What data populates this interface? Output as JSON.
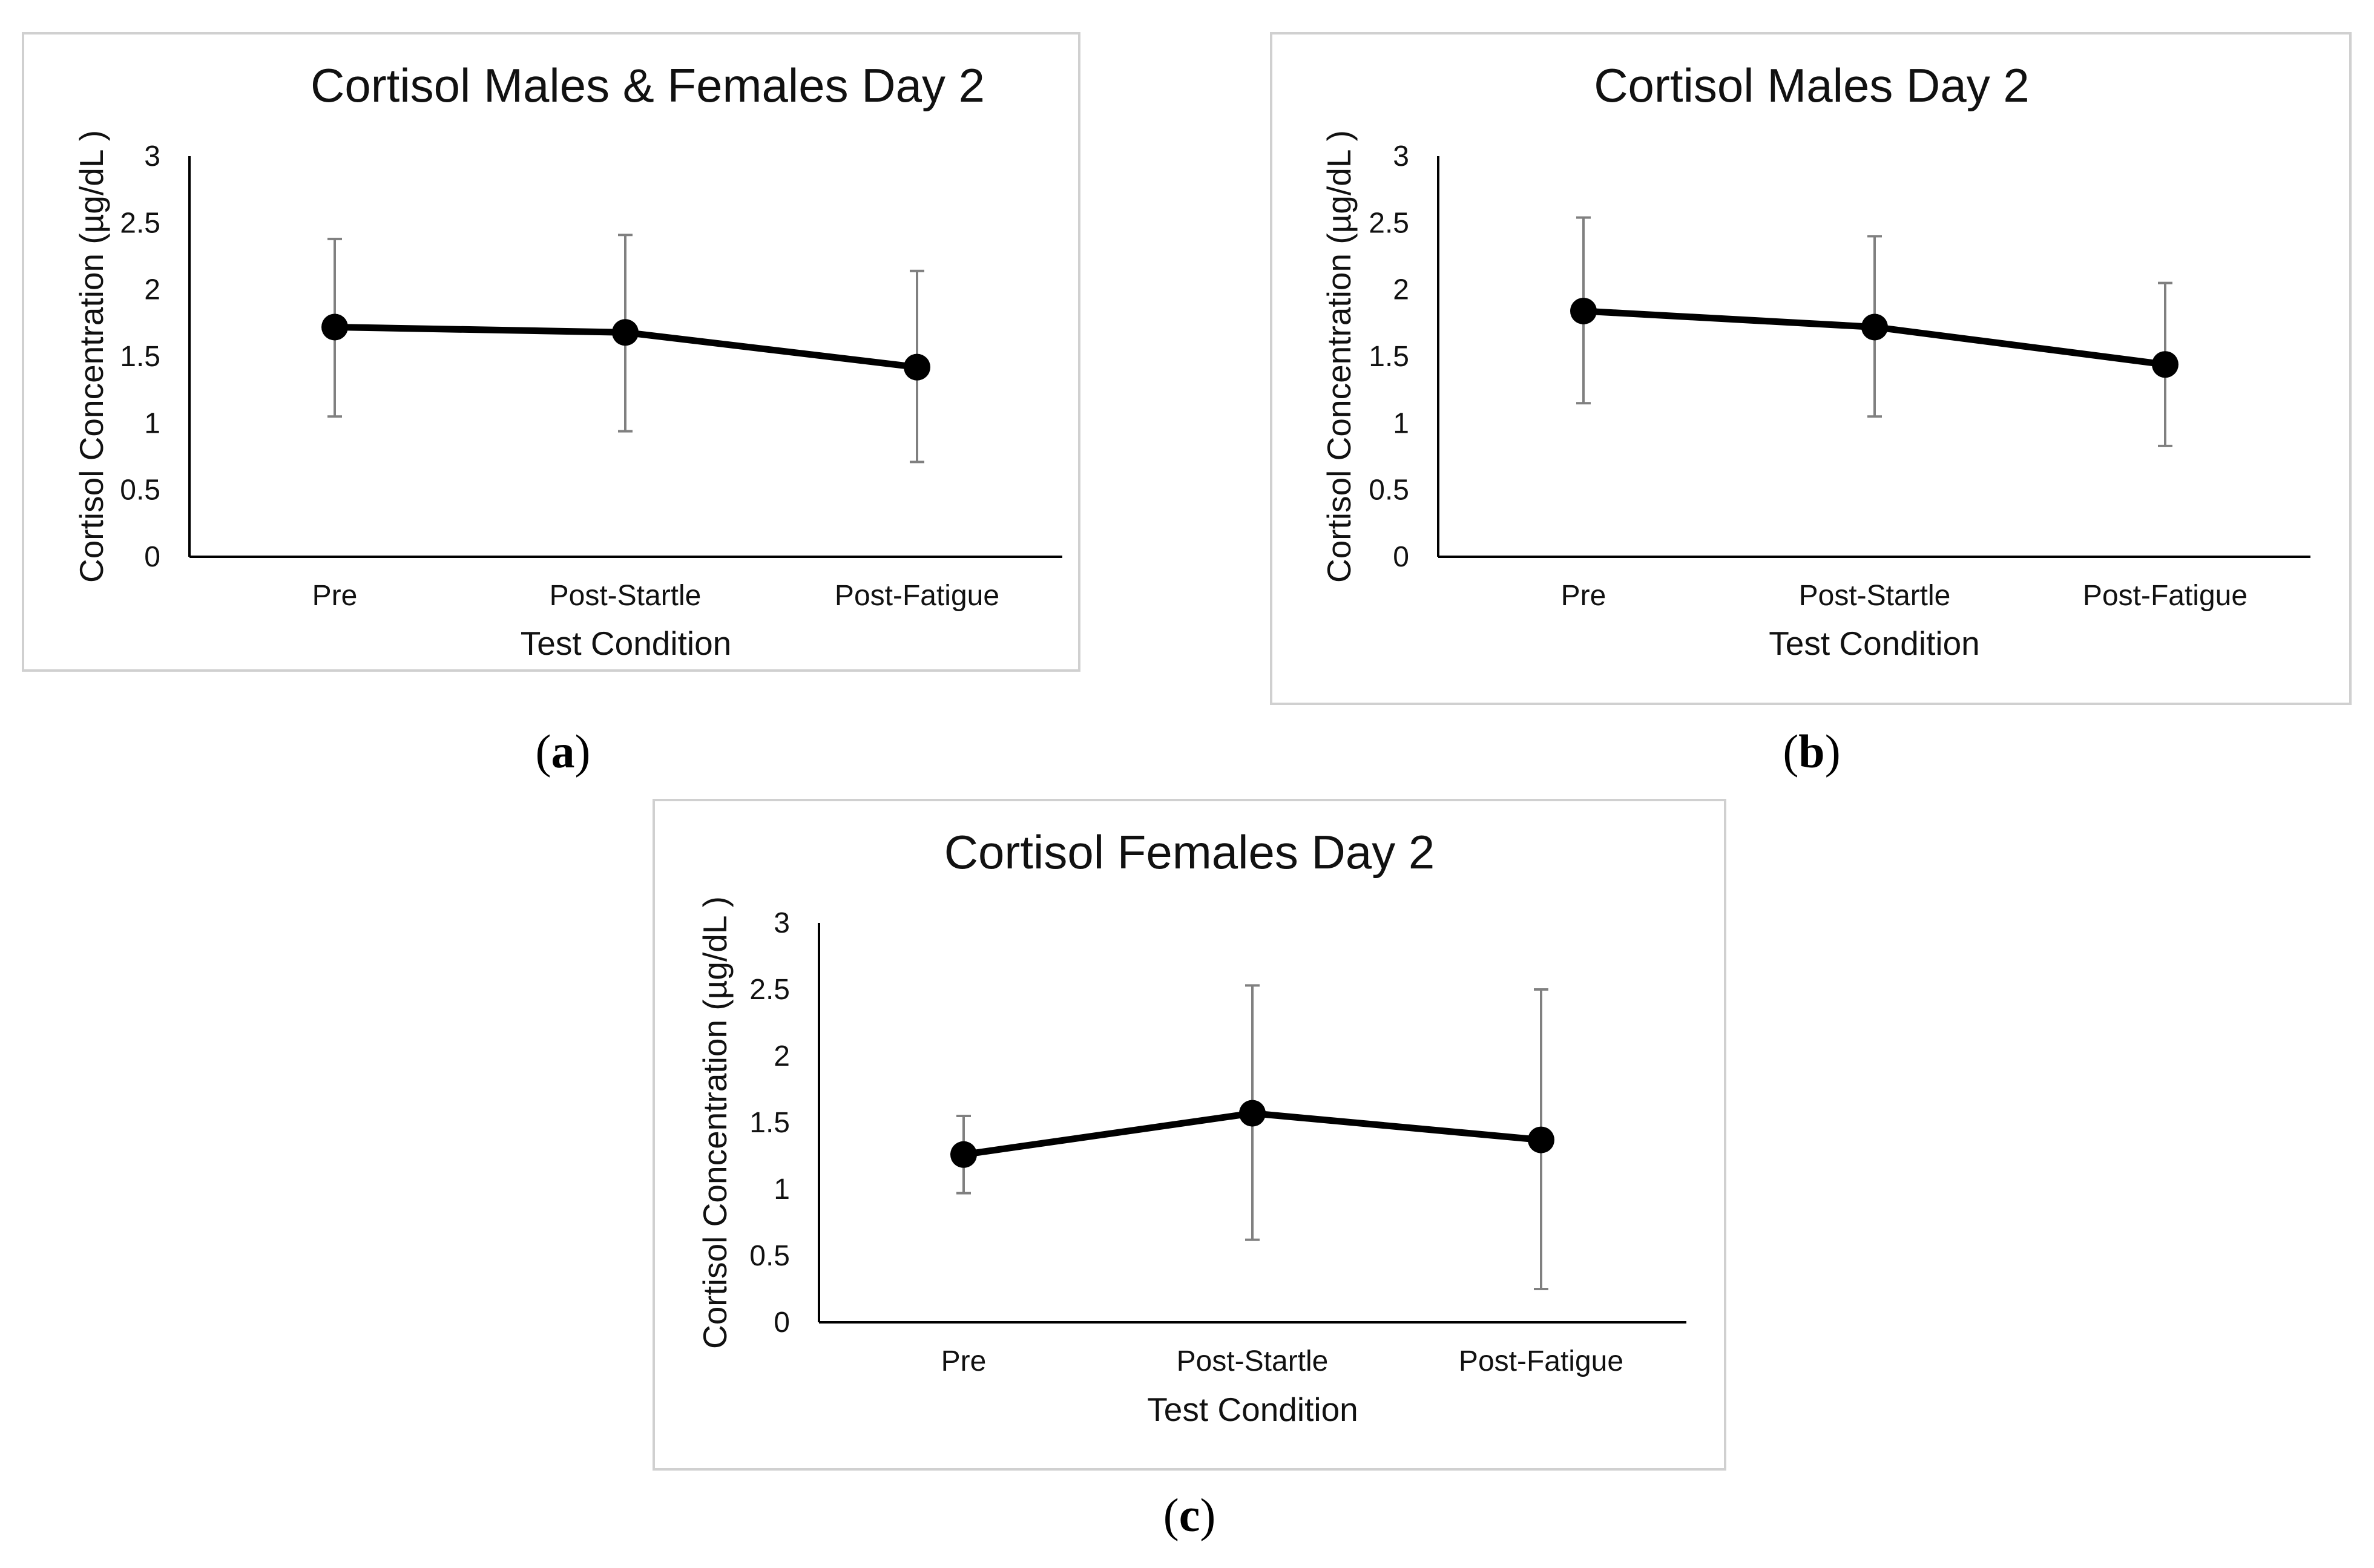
{
  "colors": {
    "frame": "#d0d0d0",
    "axis": "#000000",
    "line": "#000000",
    "error_bar": "#808080",
    "background": "#ffffff"
  },
  "chart_data": [
    {
      "type": "line",
      "panel_label": "a",
      "title": "Cortisol Males & Females Day 2",
      "xlabel": "Test Condition",
      "ylabel": "Cortisol Concentration (µg/dL )",
      "categories": [
        "Pre",
        "Post-Startle",
        "Post-Fatigue"
      ],
      "ylim": [
        0,
        3
      ],
      "yticks": [
        "0",
        "0.5",
        "1",
        "1.5",
        "2",
        "2.5",
        "3"
      ],
      "grid": false,
      "series": [
        {
          "name": "Cortisol",
          "values": [
            1.72,
            1.68,
            1.42
          ],
          "error_low": [
            1.05,
            0.94,
            0.71
          ],
          "error_high": [
            2.38,
            2.41,
            2.14
          ]
        }
      ]
    },
    {
      "type": "line",
      "panel_label": "b",
      "title": "Cortisol Males Day 2",
      "xlabel": "Test Condition",
      "ylabel": "Cortisol Concentration (µg/dL )",
      "categories": [
        "Pre",
        "Post-Startle",
        "Post-Fatigue"
      ],
      "ylim": [
        0,
        3
      ],
      "yticks": [
        "0",
        "0.5",
        "1",
        "1.5",
        "2",
        "2.5",
        "3"
      ],
      "grid": false,
      "series": [
        {
          "name": "Cortisol",
          "values": [
            1.84,
            1.72,
            1.44
          ],
          "error_low": [
            1.15,
            1.05,
            0.83
          ],
          "error_high": [
            2.54,
            2.4,
            2.05
          ]
        }
      ]
    },
    {
      "type": "line",
      "panel_label": "c",
      "title": "Cortisol Females Day 2",
      "xlabel": "Test Condition",
      "ylabel": "Cortisol Concentration (µg/dL )",
      "categories": [
        "Pre",
        "Post-Startle",
        "Post-Fatigue"
      ],
      "ylim": [
        0,
        3
      ],
      "yticks": [
        "0",
        "0.5",
        "1",
        "1.5",
        "2",
        "2.5",
        "3"
      ],
      "grid": false,
      "series": [
        {
          "name": "Cortisol",
          "values": [
            1.26,
            1.57,
            1.37
          ],
          "error_low": [
            0.97,
            0.62,
            0.25
          ],
          "error_high": [
            1.55,
            2.53,
            2.5
          ]
        }
      ]
    }
  ]
}
